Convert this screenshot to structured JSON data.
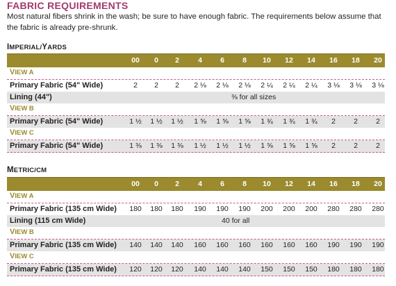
{
  "title": "FABRIC REQUIREMENTS",
  "intro": "Most natural fibers shrink in the wash; be sure to have enough fabric. The requirements below assume that the fabric is already pre-shrunk.",
  "imperial": {
    "heading_cap": "I",
    "heading_rest": "MPERIAL/",
    "heading_cap2": "Y",
    "heading_rest2": "ARDS",
    "sizes": [
      "00",
      "0",
      "2",
      "4",
      "6",
      "8",
      "10",
      "12",
      "14",
      "16",
      "18",
      "20"
    ],
    "view_a": {
      "cap": "V",
      "rest": "IEW A"
    },
    "a_primary": {
      "label": "Primary Fabric (54\" Wide)",
      "values": [
        "2",
        "2",
        "2",
        "2 ⅛",
        "2 ⅛",
        "2 ⅛",
        "2 ¼",
        "2 ¼",
        "2 ¼",
        "3 ⅛",
        "3 ⅛",
        "3 ⅛"
      ]
    },
    "a_lining": {
      "label": "Lining (44\")",
      "value": "⅜ for all sizes"
    },
    "view_b": {
      "cap": "V",
      "rest": "IEW B"
    },
    "b_primary": {
      "label": "Primary Fabric (54\" Wide)",
      "values": [
        "1 ½",
        "1 ½",
        "1 ½",
        "1 ⅝",
        "1 ⅝",
        "1 ⅝",
        "1 ¾",
        "1 ¾",
        "1 ¾",
        "2",
        "2",
        "2"
      ]
    },
    "view_c": {
      "cap": "V",
      "rest": "IEW C"
    },
    "c_primary": {
      "label": "Primary Fabric (54\" Wide)",
      "values": [
        "1 ⅜",
        "1 ⅜",
        "1 ⅜",
        "1 ½",
        "1 ½",
        "1 ½",
        "1 ⅝",
        "1 ⅝",
        "1 ⅝",
        "2",
        "2",
        "2"
      ]
    }
  },
  "metric": {
    "heading_cap": "M",
    "heading_rest": "ETRIC/CM",
    "sizes": [
      "00",
      "0",
      "2",
      "4",
      "6",
      "8",
      "10",
      "12",
      "14",
      "16",
      "18",
      "20"
    ],
    "view_a": {
      "cap": "V",
      "rest": "IEW A"
    },
    "a_primary": {
      "label": "Primary Fabric (135 cm Wide)",
      "values": [
        "180",
        "180",
        "180",
        "190",
        "190",
        "190",
        "200",
        "200",
        "200",
        "280",
        "280",
        "280"
      ]
    },
    "a_lining": {
      "label": "Lining (115 cm Wide)",
      "value": "40 for all"
    },
    "view_b": {
      "cap": "V",
      "rest": "IEW B"
    },
    "b_primary": {
      "label": "Primary Fabric (135 cm Wide)",
      "values": [
        "140",
        "140",
        "140",
        "160",
        "160",
        "160",
        "160",
        "160",
        "160",
        "190",
        "190",
        "190"
      ]
    },
    "view_c": {
      "cap": "V",
      "rest": "IEW C"
    },
    "c_primary": {
      "label": "Primary Fabric (135 cm Wide)",
      "values": [
        "120",
        "120",
        "120",
        "140",
        "140",
        "140",
        "150",
        "150",
        "150",
        "180",
        "180",
        "180"
      ]
    }
  },
  "colors": {
    "header_band": "#9b8a2e",
    "title": "#a3396e",
    "row_shade": "#e3e3e4",
    "separator": "#c65a8a"
  }
}
